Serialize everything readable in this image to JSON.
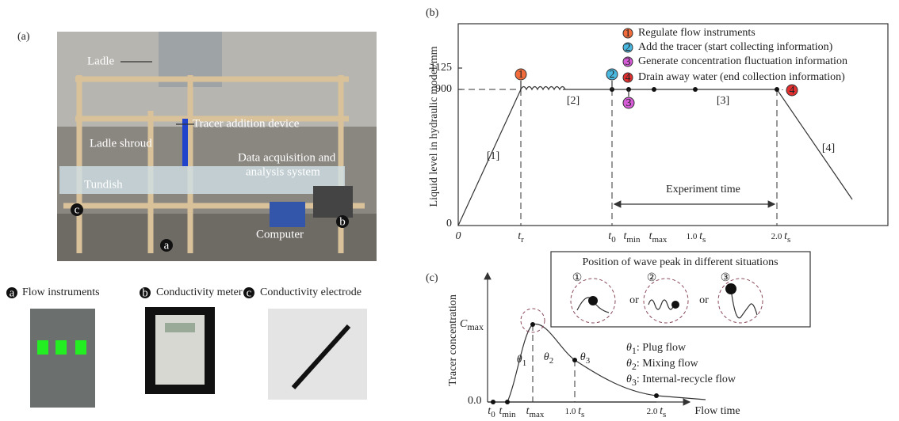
{
  "panel_a": {
    "label": "(a)",
    "photo_labels": {
      "ladle": "Ladle",
      "tracer": "Tracer addition device",
      "shroud": "Ladle shroud",
      "daq": [
        "Data acquisition and",
        "analysis system"
      ],
      "tundish": "Tundish",
      "computer": "Computer"
    },
    "markers": [
      "a",
      "b",
      "c"
    ],
    "captions": [
      {
        "marker": "a",
        "text": "Flow instruments"
      },
      {
        "marker": "b",
        "text": "Conductivity meter"
      },
      {
        "marker": "c",
        "text": "Conductivity electrode"
      }
    ]
  },
  "panel_b": {
    "label": "(b)",
    "y_label": "Liquid level  in hydraulic model/mm",
    "y_ticks": [
      "0",
      "900",
      "1125"
    ],
    "x_ticks": [
      {
        "main": "0"
      },
      {
        "main": "t",
        "sub": "r"
      },
      {
        "main": "t",
        "sub": "0"
      },
      {
        "main": "t",
        "sub": "min"
      },
      {
        "main": "t",
        "sub": "max"
      },
      {
        "prefix": "1.0",
        "main": "t",
        "sub": "s"
      },
      {
        "prefix": "2.0",
        "main": "t",
        "sub": "s"
      }
    ],
    "legend": [
      {
        "num": "1",
        "text": "Regulate flow instruments"
      },
      {
        "num": "2",
        "text": "Add the tracer (start collecting information)"
      },
      {
        "num": "3",
        "text": "Generate concentration fluctuation information"
      },
      {
        "num": "4",
        "text": "Drain away water (end collection information)"
      }
    ],
    "segments": [
      "[1]",
      "[2]",
      "[3]",
      "[4]"
    ],
    "experiment": "Experiment time"
  },
  "panel_c": {
    "label": "(c)",
    "y_label": "Tracer concentration",
    "c_max": {
      "main": "C",
      "sub": "max"
    },
    "zero": "0.0",
    "x_ticks": [
      {
        "main": "t",
        "sub": "0"
      },
      {
        "main": "t",
        "sub": "min"
      },
      {
        "main": "t",
        "sub": "max"
      },
      {
        "prefix": "1.0",
        "main": "t",
        "sub": "s"
      },
      {
        "prefix": "2.0",
        "main": "t",
        "sub": "s"
      }
    ],
    "x_label": "Flow time",
    "inset_title": "Position of wave peak in different situations",
    "inset_nums": [
      "①",
      "②",
      "③"
    ],
    "or": "or",
    "thetas": [
      {
        "main": "θ",
        "sub": "1"
      },
      {
        "main": "θ",
        "sub": "2"
      },
      {
        "main": "θ",
        "sub": "3"
      }
    ],
    "flows": [
      {
        "main": "θ",
        "sub": "1",
        "text": ":  Plug flow"
      },
      {
        "main": "θ",
        "sub": "2",
        "text": ":  Mixing flow"
      },
      {
        "main": "θ",
        "sub": "3",
        "text": ":  Internal-recycle flow"
      }
    ]
  }
}
